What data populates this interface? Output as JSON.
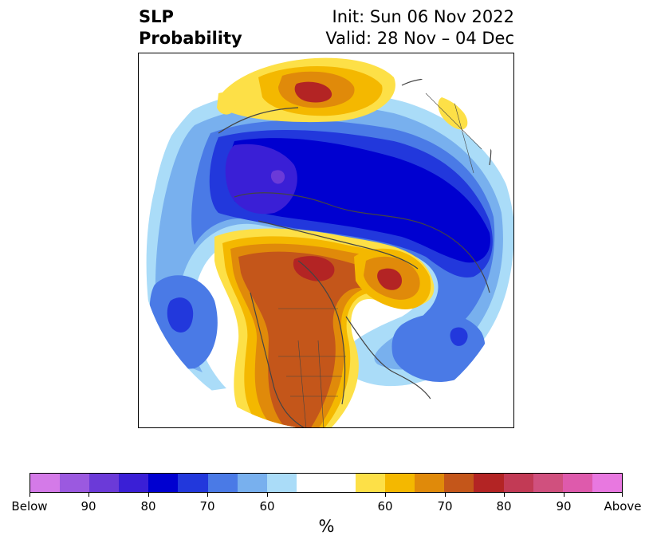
{
  "title": {
    "left_line1": "SLP",
    "left_line2": "Probability",
    "right_line1": "Init: Sun 06 Nov 2022",
    "right_line2": "Valid: 28 Nov – 04 Dec"
  },
  "colorbar": {
    "colors": [
      "#d47ae8",
      "#9b59e0",
      "#6b3ad8",
      "#3a1fd6",
      "#0000d0",
      "#2238dc",
      "#4a7ae6",
      "#78b0ee",
      "#aadcf8",
      "#ffffff",
      "#ffffff",
      "#fde047",
      "#f4b800",
      "#e08a0a",
      "#c4561a",
      "#b32424",
      "#c23a55",
      "#d0507e",
      "#de5aac",
      "#e878e0"
    ],
    "tick_labels": [
      "Below",
      "90",
      "80",
      "70",
      "60",
      "60",
      "70",
      "80",
      "90",
      "Above"
    ],
    "units_label": "%"
  },
  "palette": {
    "below_far": "#0000d0",
    "below_strong": "#2238dc",
    "below_mid": "#4a7ae6",
    "below_light": "#78b0ee",
    "below_faint": "#aadcf8",
    "below_core": "#3a1fd6",
    "below_peak": "#6b3ad8",
    "above_faint": "#fde047",
    "above_light": "#f4b800",
    "above_mid": "#e08a0a",
    "above_strong": "#c4561a",
    "above_peak": "#b32424",
    "coast": "#444444"
  }
}
